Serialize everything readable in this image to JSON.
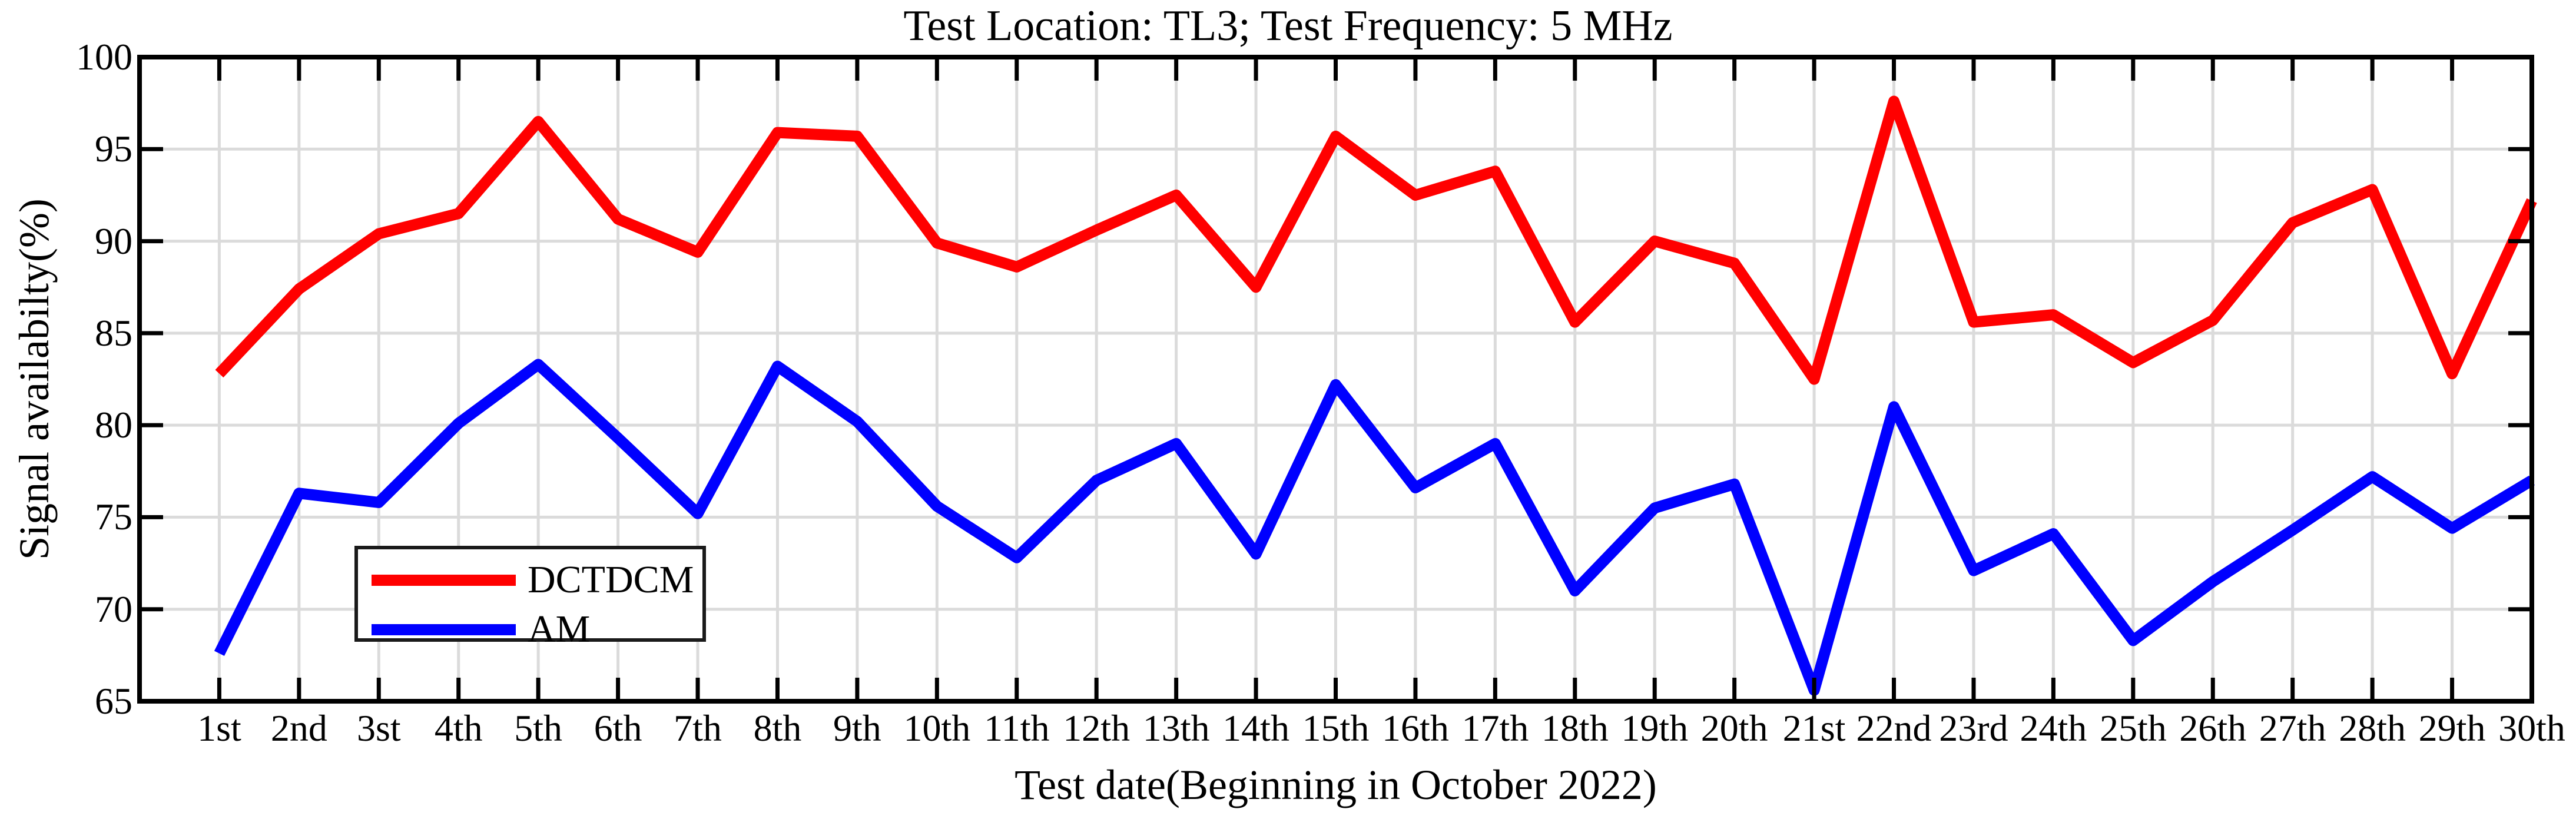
{
  "title": "Test Location: TL3; Test Frequency: 5 MHz",
  "axes": {
    "xlabel": "Test date(Beginning in October 2022)",
    "ylabel": "Signal availabilty(%)",
    "x_tick_labels": [
      "1st",
      "2nd",
      "3st",
      "4th",
      "5th",
      "6th",
      "7th",
      "8th",
      "9th",
      "10th",
      "11th",
      "12th",
      "13th",
      "14th",
      "15th",
      "16th",
      "17th",
      "18th",
      "19th",
      "20th",
      "21st",
      "22nd",
      "23rd",
      "24th",
      "25th",
      "26th",
      "27th",
      "28th",
      "29th",
      "30th"
    ],
    "y_tick_labels": [
      "65",
      "70",
      "75",
      "80",
      "85",
      "90",
      "95",
      "100"
    ]
  },
  "legend": {
    "items": [
      {
        "label": "DCTDCM",
        "color": "#ff0000"
      },
      {
        "label": "AM",
        "color": "#0000ff"
      }
    ]
  },
  "colors": {
    "dctdcm": "#ff0000",
    "am": "#0000ff",
    "grid": "#dbdbdb",
    "axis": "#000000",
    "background": "#ffffff",
    "legend_border": "#1a1a1a"
  },
  "chart_data": {
    "type": "line",
    "title": "Test Location: TL3; Test Frequency: 5 MHz",
    "xlabel": "Test date(Beginning in October 2022)",
    "ylabel": "Signal availabilty(%)",
    "categories": [
      "1st",
      "2nd",
      "3st",
      "4th",
      "5th",
      "6th",
      "7th",
      "8th",
      "9th",
      "10th",
      "11th",
      "12th",
      "13th",
      "14th",
      "15th",
      "16th",
      "17th",
      "18th",
      "19th",
      "20th",
      "21st",
      "22nd",
      "23rd",
      "24th",
      "25th",
      "26th",
      "27th",
      "28th",
      "29th",
      "30th"
    ],
    "series": [
      {
        "name": "DCTDCM",
        "color": "#ff0000",
        "values": [
          82.8,
          87.4,
          90.4,
          91.5,
          96.5,
          91.2,
          89.4,
          95.9,
          95.7,
          89.9,
          88.6,
          90.6,
          92.5,
          87.5,
          95.7,
          92.5,
          93.8,
          85.6,
          90.0,
          88.8,
          82.5,
          97.6,
          85.6,
          86.0,
          83.4,
          85.7,
          91.0,
          92.8,
          82.8,
          92.2
        ]
      },
      {
        "name": "AM",
        "color": "#0000ff",
        "values": [
          67.6,
          76.3,
          75.8,
          80.1,
          83.3,
          79.3,
          75.2,
          83.2,
          80.2,
          75.6,
          72.8,
          77.0,
          79.0,
          73.0,
          82.2,
          76.6,
          79.0,
          71.0,
          75.5,
          76.8,
          65.6,
          81.0,
          72.1,
          74.1,
          68.3,
          71.5,
          74.3,
          77.2,
          74.4,
          77.0
        ]
      }
    ],
    "xlim": [
      0,
      30
    ],
    "ylim": [
      65,
      100
    ],
    "yticks": [
      65,
      70,
      75,
      80,
      85,
      90,
      95,
      100
    ],
    "grid": true,
    "legend_position": "inside-lower-left"
  }
}
